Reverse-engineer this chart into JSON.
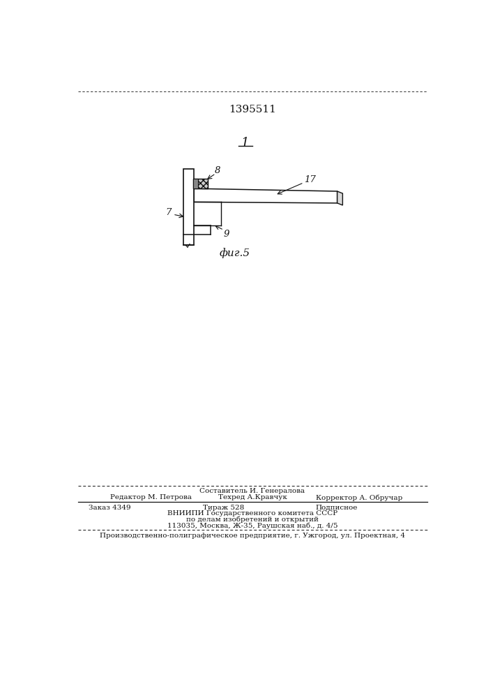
{
  "patent_number": "1395511",
  "fig_label": "фиг.5",
  "label_1": "1",
  "label_7": "7",
  "label_8": "8",
  "label_9": "9",
  "label_17": "17",
  "footer_sostavitel": "Составитель И. Генералова",
  "footer_editor": "Редактор М. Петрова",
  "footer_techred": "Техред А.Кравчук",
  "footer_corrector": "Корректор А. Обручар",
  "footer_order": "Заказ 4349",
  "footer_tirazh": "Тираж 528",
  "footer_podpisnoe": "Подписное",
  "footer_vnipi": "ВНИИПИ Государственного комитета СССР",
  "footer_po_delam": "по делам изобретений и открытий",
  "footer_address": "113035, Москва, Ж-35, Раушская наб., д. 4/5",
  "footer_producer": "Производственно-полиграфическое предприятие, г. Ужгород, ул. Проектная, 4",
  "bg_color": "#ffffff",
  "line_color": "#111111"
}
